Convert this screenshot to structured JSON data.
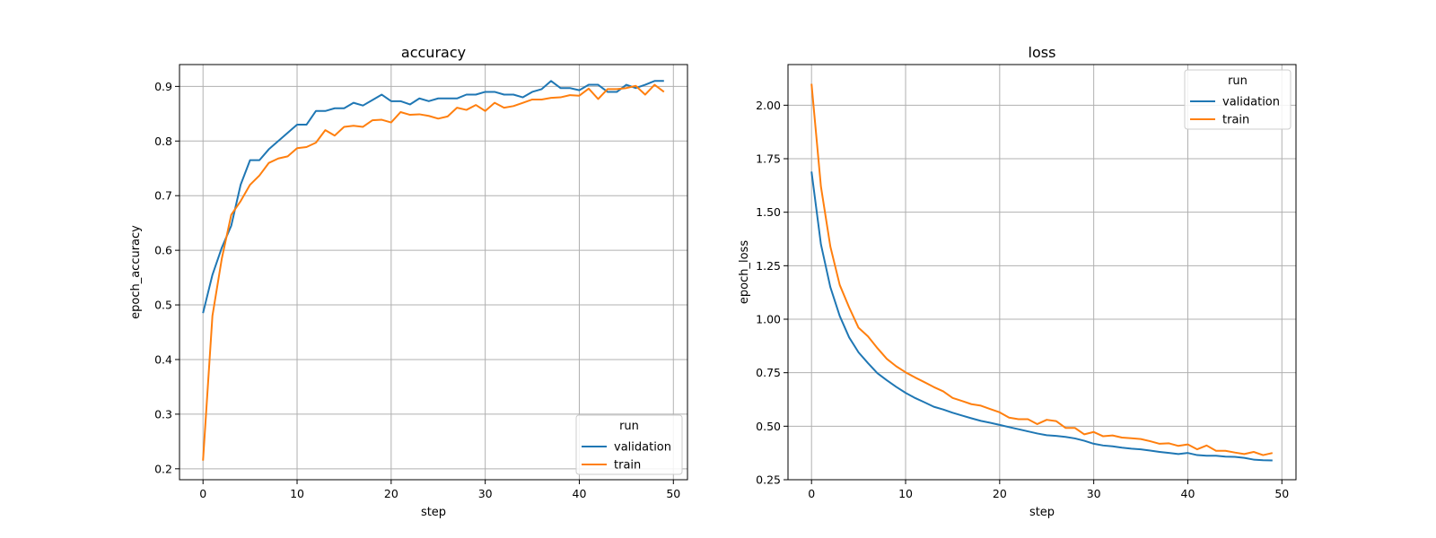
{
  "chart_data": [
    {
      "type": "line",
      "title": "accuracy",
      "xlabel": "step",
      "ylabel": "epoch_accuracy",
      "xlim": [
        -2.5,
        51.5
      ],
      "ylim": [
        0.18,
        0.94
      ],
      "xticks": [
        0,
        10,
        20,
        30,
        40,
        50
      ],
      "yticks": [
        0.2,
        0.3,
        0.4,
        0.5,
        0.6,
        0.7,
        0.8,
        0.9
      ],
      "ytick_decimals": 1,
      "grid": true,
      "legend": {
        "title": "run",
        "placement": "lower-right"
      },
      "series": [
        {
          "name": "validation",
          "color": "#1f77b4",
          "values": [
            0.485,
            0.555,
            0.605,
            0.645,
            0.72,
            0.765,
            0.765,
            0.785,
            0.8,
            0.815,
            0.83,
            0.83,
            0.855,
            0.855,
            0.86,
            0.86,
            0.87,
            0.865,
            0.875,
            0.885,
            0.873,
            0.873,
            0.867,
            0.878,
            0.873,
            0.878,
            0.878,
            0.878,
            0.885,
            0.885,
            0.89,
            0.89,
            0.885,
            0.885,
            0.88,
            0.89,
            0.895,
            0.91,
            0.897,
            0.897,
            0.893,
            0.903,
            0.903,
            0.89,
            0.89,
            0.903,
            0.897,
            0.903,
            0.91,
            0.91
          ]
        },
        {
          "name": "train",
          "color": "#ff7f0e",
          "values": [
            0.215,
            0.48,
            0.585,
            0.665,
            0.69,
            0.72,
            0.737,
            0.76,
            0.768,
            0.772,
            0.787,
            0.789,
            0.797,
            0.82,
            0.81,
            0.826,
            0.828,
            0.826,
            0.838,
            0.839,
            0.834,
            0.853,
            0.848,
            0.849,
            0.846,
            0.841,
            0.845,
            0.861,
            0.857,
            0.866,
            0.855,
            0.87,
            0.861,
            0.864,
            0.87,
            0.876,
            0.876,
            0.879,
            0.88,
            0.884,
            0.883,
            0.896,
            0.877,
            0.895,
            0.895,
            0.897,
            0.901,
            0.885,
            0.903,
            0.89
          ]
        }
      ]
    },
    {
      "type": "line",
      "title": "loss",
      "xlabel": "step",
      "ylabel": "epoch_loss",
      "xlim": [
        -2.5,
        51.5
      ],
      "ylim": [
        0.25,
        2.19
      ],
      "xticks": [
        0,
        10,
        20,
        30,
        40,
        50
      ],
      "yticks": [
        0.25,
        0.5,
        0.75,
        1.0,
        1.25,
        1.5,
        1.75,
        2.0
      ],
      "ytick_decimals": 2,
      "grid": true,
      "legend": {
        "title": "run",
        "placement": "upper-right"
      },
      "series": [
        {
          "name": "validation",
          "color": "#1f77b4",
          "values": [
            1.69,
            1.35,
            1.15,
            1.015,
            0.915,
            0.845,
            0.795,
            0.748,
            0.715,
            0.684,
            0.656,
            0.632,
            0.612,
            0.591,
            0.578,
            0.563,
            0.55,
            0.537,
            0.525,
            0.516,
            0.506,
            0.496,
            0.486,
            0.476,
            0.466,
            0.458,
            0.455,
            0.45,
            0.443,
            0.432,
            0.418,
            0.41,
            0.406,
            0.4,
            0.395,
            0.392,
            0.386,
            0.38,
            0.375,
            0.37,
            0.375,
            0.365,
            0.362,
            0.362,
            0.358,
            0.357,
            0.352,
            0.344,
            0.341,
            0.34
          ]
        },
        {
          "name": "train",
          "color": "#ff7f0e",
          "values": [
            2.1,
            1.62,
            1.34,
            1.16,
            1.055,
            0.96,
            0.92,
            0.865,
            0.815,
            0.78,
            0.752,
            0.728,
            0.706,
            0.683,
            0.663,
            0.632,
            0.618,
            0.603,
            0.596,
            0.58,
            0.565,
            0.54,
            0.533,
            0.533,
            0.51,
            0.53,
            0.524,
            0.492,
            0.492,
            0.462,
            0.473,
            0.453,
            0.457,
            0.447,
            0.444,
            0.44,
            0.43,
            0.418,
            0.42,
            0.408,
            0.415,
            0.392,
            0.41,
            0.385,
            0.385,
            0.377,
            0.37,
            0.38,
            0.365,
            0.375
          ]
        }
      ]
    }
  ]
}
